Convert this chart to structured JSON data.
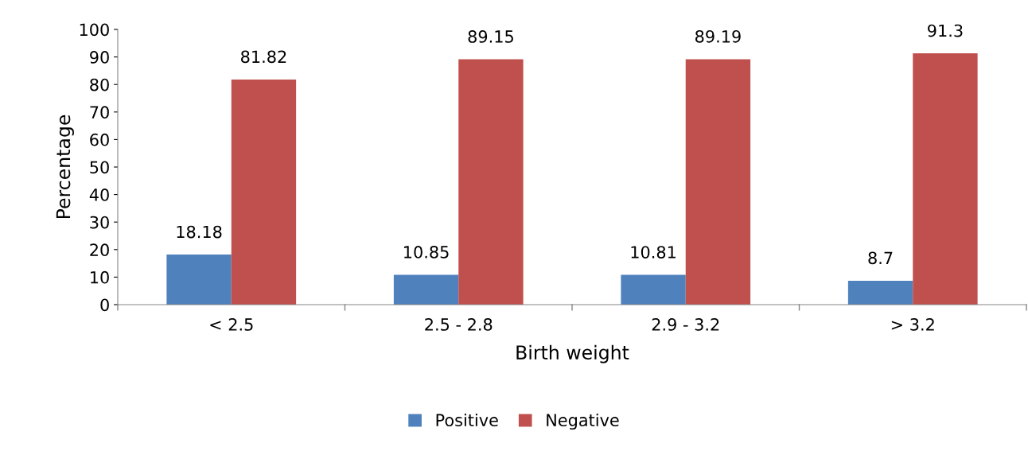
{
  "chart_data": {
    "type": "bar",
    "xlabel": "Birth weight",
    "ylabel": "Percentage",
    "categories": [
      "< 2.5",
      "2.5 - 2.8",
      "2.9 - 3.2",
      "> 3.2"
    ],
    "series": [
      {
        "name": "Positive",
        "color": "#4f81bd",
        "values": [
          18.18,
          10.85,
          10.81,
          8.7
        ]
      },
      {
        "name": "Negative",
        "color": "#c0504d",
        "values": [
          81.82,
          89.15,
          89.19,
          91.3
        ]
      }
    ],
    "ylim": [
      0,
      100
    ],
    "yticks": [
      0,
      10,
      20,
      30,
      40,
      50,
      60,
      70,
      80,
      90,
      100
    ],
    "grid": false,
    "legend": "bottom",
    "data_labels": true
  }
}
